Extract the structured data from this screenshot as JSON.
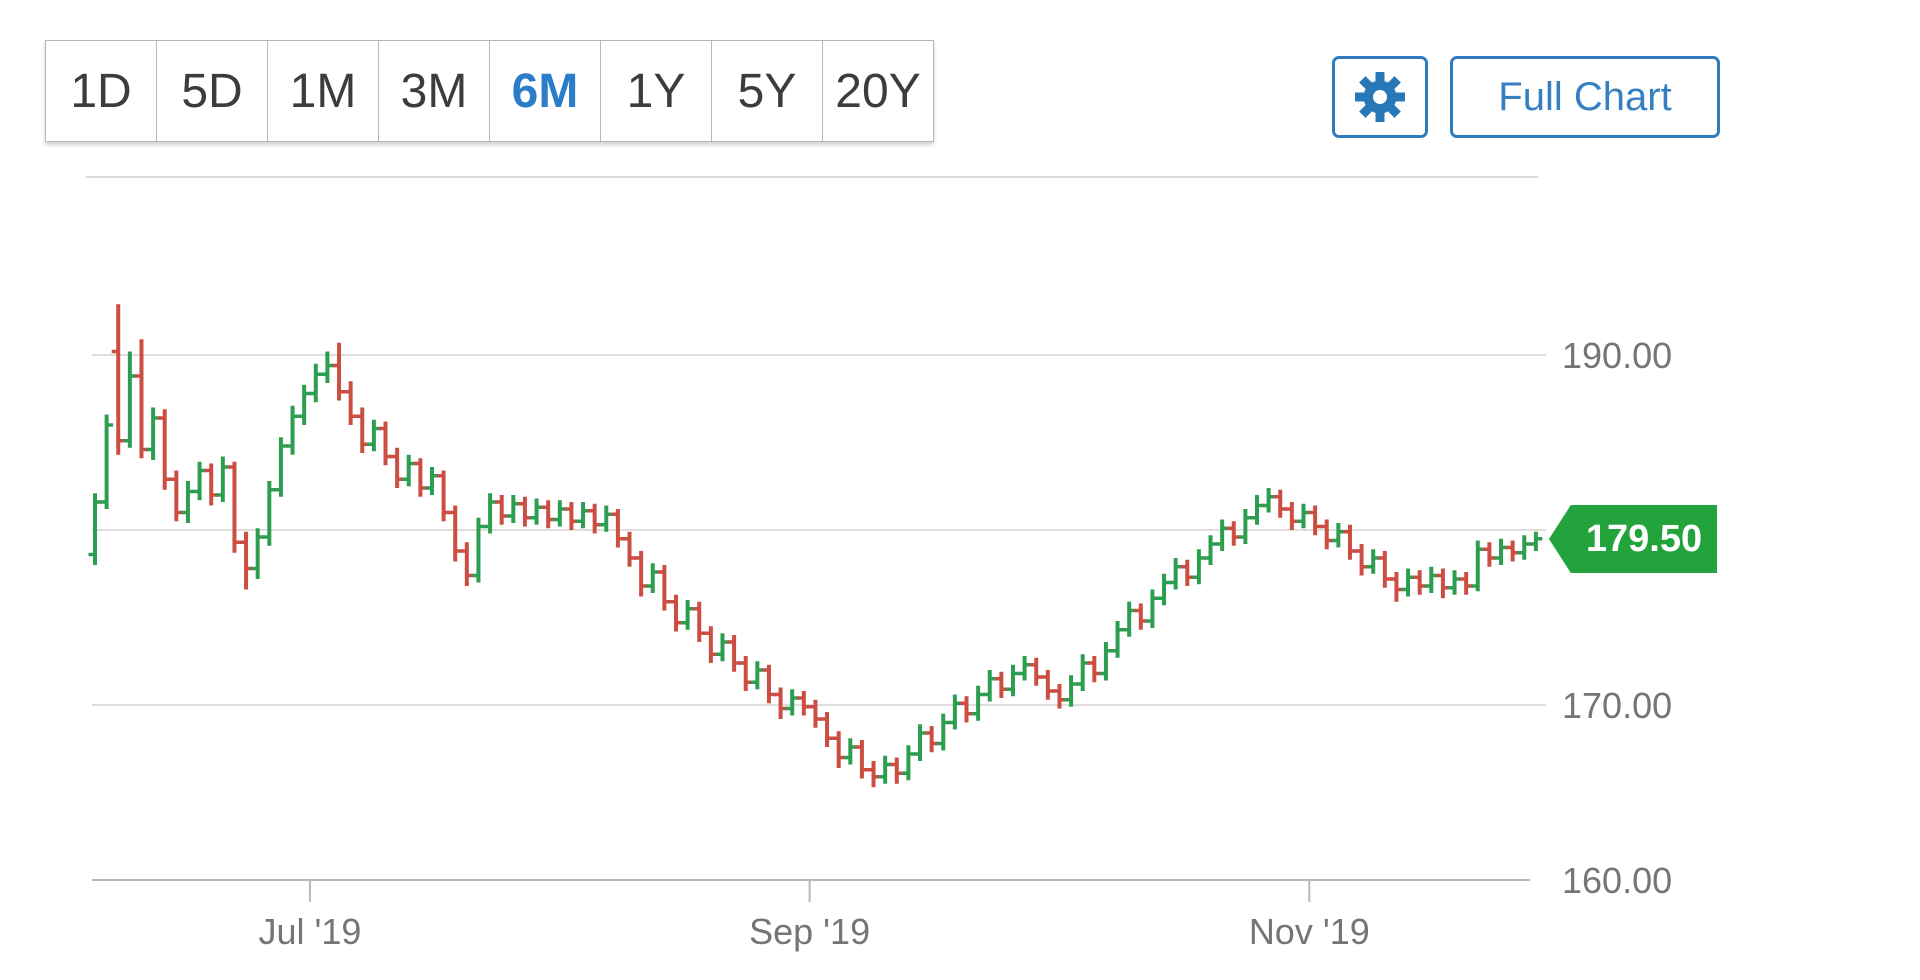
{
  "toolbar": {
    "ranges": [
      {
        "label": "1D",
        "active": false
      },
      {
        "label": "5D",
        "active": false
      },
      {
        "label": "1M",
        "active": false
      },
      {
        "label": "3M",
        "active": false
      },
      {
        "label": "6M",
        "active": true
      },
      {
        "label": "1Y",
        "active": false
      },
      {
        "label": "5Y",
        "active": false
      },
      {
        "label": "20Y",
        "active": false
      }
    ],
    "gear_icon": "settings-gear",
    "full_chart_label": "Full Chart",
    "accent_blue": "#2e7cbe"
  },
  "chart_data": {
    "type": "ohlc-bar",
    "period_shown": "6M",
    "last_price": 179.5,
    "last_price_label": "179.50",
    "up_color": "#2d9e50",
    "down_color": "#cc4d42",
    "badge_color": "#22a33c",
    "gridline_color": "#dedede",
    "axis_color": "#b8b8b8",
    "label_color": "#757575",
    "y_axis": {
      "range": [
        158.5,
        194.0
      ],
      "ticks": [
        {
          "value": 190,
          "label": "190.00"
        },
        {
          "value": 180,
          "label": ""
        },
        {
          "value": 170,
          "label": "170.00"
        },
        {
          "value": 160,
          "label": "160.00"
        }
      ]
    },
    "x_axis": {
      "ticks": [
        {
          "label": "Jul '19",
          "index": 18.5
        },
        {
          "label": "Sep '19",
          "index": 61.5
        },
        {
          "label": "Nov '19",
          "index": 104.5
        }
      ]
    },
    "candles": [
      [
        178.6,
        182.1,
        178.0,
        181.6
      ],
      [
        181.6,
        186.6,
        181.2,
        186.0
      ],
      [
        190.2,
        192.9,
        184.3,
        185.1
      ],
      [
        185.1,
        190.2,
        184.7,
        188.8
      ],
      [
        188.8,
        190.9,
        184.1,
        184.6
      ],
      [
        184.6,
        187.0,
        184.0,
        186.4
      ],
      [
        186.4,
        186.9,
        182.3,
        182.9
      ],
      [
        182.9,
        183.4,
        180.5,
        181.0
      ],
      [
        181.0,
        182.8,
        180.4,
        182.2
      ],
      [
        182.2,
        183.9,
        181.7,
        183.4
      ],
      [
        183.4,
        183.8,
        181.4,
        182.0
      ],
      [
        182.0,
        184.2,
        181.6,
        183.6
      ],
      [
        183.6,
        183.9,
        178.7,
        179.3
      ],
      [
        179.3,
        179.9,
        176.6,
        177.8
      ],
      [
        177.8,
        180.1,
        177.2,
        179.6
      ],
      [
        179.6,
        182.8,
        179.1,
        182.3
      ],
      [
        182.3,
        185.3,
        181.9,
        184.8
      ],
      [
        184.8,
        187.1,
        184.3,
        186.5
      ],
      [
        186.5,
        188.3,
        186.0,
        187.8
      ],
      [
        187.8,
        189.5,
        187.3,
        188.9
      ],
      [
        188.9,
        190.2,
        188.4,
        189.4
      ],
      [
        189.4,
        190.7,
        187.4,
        187.9
      ],
      [
        187.9,
        188.5,
        186.0,
        186.5
      ],
      [
        186.5,
        187.0,
        184.4,
        184.9
      ],
      [
        184.9,
        186.3,
        184.5,
        185.8
      ],
      [
        185.8,
        186.2,
        183.7,
        184.2
      ],
      [
        184.2,
        184.7,
        182.4,
        182.9
      ],
      [
        182.9,
        184.3,
        182.5,
        183.8
      ],
      [
        183.8,
        184.1,
        181.9,
        182.4
      ],
      [
        182.4,
        183.6,
        182.0,
        183.1
      ],
      [
        183.1,
        183.4,
        180.5,
        181.0
      ],
      [
        181.0,
        181.4,
        178.2,
        178.8
      ],
      [
        178.8,
        179.3,
        176.8,
        177.4
      ],
      [
        177.4,
        180.7,
        177.0,
        180.2
      ],
      [
        180.2,
        182.1,
        179.8,
        181.6
      ],
      [
        181.6,
        182.0,
        180.3,
        180.8
      ],
      [
        180.8,
        182.0,
        180.4,
        181.5
      ],
      [
        181.5,
        181.9,
        180.2,
        180.7
      ],
      [
        180.7,
        181.8,
        180.3,
        181.3
      ],
      [
        181.3,
        181.7,
        180.1,
        180.6
      ],
      [
        180.6,
        181.7,
        180.2,
        181.2
      ],
      [
        181.2,
        181.6,
        180.0,
        180.5
      ],
      [
        180.5,
        181.6,
        180.1,
        181.1
      ],
      [
        181.1,
        181.5,
        179.8,
        180.3
      ],
      [
        180.3,
        181.4,
        179.9,
        180.9
      ],
      [
        180.9,
        181.2,
        179.0,
        179.5
      ],
      [
        179.5,
        179.9,
        177.9,
        178.4
      ],
      [
        178.4,
        178.8,
        176.2,
        176.8
      ],
      [
        176.8,
        178.1,
        176.4,
        177.6
      ],
      [
        177.6,
        178.0,
        175.4,
        175.9
      ],
      [
        175.9,
        176.3,
        174.2,
        174.7
      ],
      [
        174.7,
        176.0,
        174.3,
        175.5
      ],
      [
        175.5,
        175.9,
        173.6,
        174.1
      ],
      [
        174.1,
        174.5,
        172.4,
        172.9
      ],
      [
        172.9,
        174.1,
        172.5,
        173.6
      ],
      [
        173.6,
        174.0,
        171.9,
        172.4
      ],
      [
        172.4,
        172.8,
        170.8,
        171.3
      ],
      [
        171.3,
        172.5,
        170.9,
        172.0
      ],
      [
        172.0,
        172.3,
        170.1,
        170.6
      ],
      [
        170.6,
        171.0,
        169.2,
        169.8
      ],
      [
        169.8,
        170.9,
        169.4,
        170.4
      ],
      [
        170.4,
        170.8,
        169.4,
        169.9
      ],
      [
        169.9,
        170.3,
        168.7,
        169.2
      ],
      [
        169.2,
        169.6,
        167.6,
        168.1
      ],
      [
        168.1,
        168.5,
        166.4,
        167.0
      ],
      [
        167.0,
        168.1,
        166.6,
        167.6
      ],
      [
        167.6,
        168.0,
        165.8,
        166.3
      ],
      [
        166.3,
        166.8,
        165.3,
        165.9
      ],
      [
        165.9,
        167.1,
        165.5,
        166.6
      ],
      [
        166.6,
        167.0,
        165.5,
        166.1
      ],
      [
        166.1,
        167.7,
        165.7,
        167.2
      ],
      [
        167.2,
        168.9,
        166.8,
        168.4
      ],
      [
        168.4,
        168.8,
        167.3,
        167.8
      ],
      [
        167.8,
        169.5,
        167.4,
        169.0
      ],
      [
        169.0,
        170.6,
        168.6,
        170.1
      ],
      [
        170.1,
        170.5,
        169.0,
        169.5
      ],
      [
        169.5,
        171.1,
        169.1,
        170.6
      ],
      [
        170.6,
        172.0,
        170.2,
        171.5
      ],
      [
        171.5,
        171.9,
        170.4,
        170.9
      ],
      [
        170.9,
        172.3,
        170.5,
        171.8
      ],
      [
        171.8,
        172.8,
        171.4,
        172.3
      ],
      [
        172.3,
        172.7,
        171.1,
        171.6
      ],
      [
        171.6,
        172.0,
        170.3,
        170.8
      ],
      [
        170.8,
        171.2,
        169.8,
        170.3
      ],
      [
        170.3,
        171.7,
        169.9,
        171.2
      ],
      [
        171.2,
        172.9,
        170.8,
        172.4
      ],
      [
        172.4,
        172.8,
        171.3,
        171.8
      ],
      [
        171.8,
        173.6,
        171.4,
        173.1
      ],
      [
        173.1,
        174.8,
        172.7,
        174.3
      ],
      [
        174.3,
        175.9,
        173.9,
        175.4
      ],
      [
        175.4,
        175.8,
        174.3,
        174.8
      ],
      [
        174.8,
        176.6,
        174.4,
        176.1
      ],
      [
        176.1,
        177.5,
        175.7,
        177.0
      ],
      [
        177.0,
        178.4,
        176.6,
        177.9
      ],
      [
        177.9,
        178.3,
        176.8,
        177.3
      ],
      [
        177.3,
        178.9,
        176.9,
        178.4
      ],
      [
        178.4,
        179.7,
        178.0,
        179.2
      ],
      [
        179.2,
        180.6,
        178.8,
        180.1
      ],
      [
        180.1,
        180.5,
        179.1,
        179.6
      ],
      [
        179.6,
        181.2,
        179.2,
        180.7
      ],
      [
        180.7,
        182.0,
        180.3,
        181.4
      ],
      [
        181.4,
        182.4,
        181.0,
        181.9
      ],
      [
        181.9,
        182.3,
        180.7,
        181.2
      ],
      [
        181.2,
        181.6,
        180.0,
        180.5
      ],
      [
        180.5,
        181.5,
        180.1,
        181.0
      ],
      [
        181.0,
        181.4,
        179.7,
        180.2
      ],
      [
        180.2,
        180.6,
        178.9,
        179.4
      ],
      [
        179.4,
        180.4,
        179.0,
        179.9
      ],
      [
        179.9,
        180.3,
        178.3,
        178.8
      ],
      [
        178.8,
        179.2,
        177.4,
        177.9
      ],
      [
        177.9,
        178.9,
        177.5,
        178.4
      ],
      [
        178.4,
        178.8,
        176.7,
        177.2
      ],
      [
        177.2,
        177.6,
        175.9,
        176.6
      ],
      [
        176.6,
        177.8,
        176.2,
        177.3
      ],
      [
        177.3,
        177.7,
        176.3,
        176.8
      ],
      [
        176.8,
        177.9,
        176.4,
        177.4
      ],
      [
        177.4,
        177.8,
        176.1,
        176.7
      ],
      [
        176.7,
        177.7,
        176.3,
        177.2
      ],
      [
        177.2,
        177.6,
        176.3,
        176.8
      ],
      [
        176.8,
        179.4,
        176.5,
        178.9
      ],
      [
        178.9,
        179.3,
        177.9,
        178.4
      ],
      [
        178.4,
        179.5,
        178.0,
        179.0
      ],
      [
        179.0,
        179.4,
        178.2,
        178.7
      ],
      [
        178.7,
        179.7,
        178.3,
        179.2
      ],
      [
        179.2,
        179.9,
        178.8,
        179.5
      ]
    ]
  }
}
